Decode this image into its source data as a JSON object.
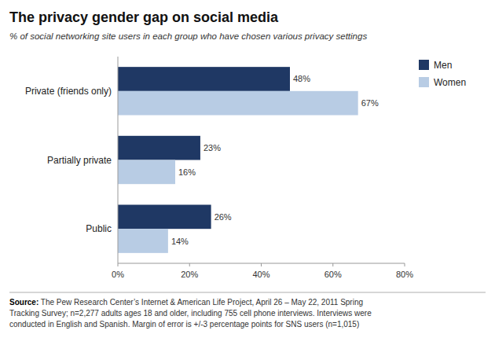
{
  "chart_data": {
    "type": "bar",
    "orientation": "horizontal",
    "title": "The privacy gender gap on social media",
    "subtitle": "% of social networking site users in each group who have chosen various privacy settings",
    "categories": [
      "Public",
      "Partially private",
      "Private (friends only)"
    ],
    "series": [
      {
        "name": "Men",
        "color": "#1F3864",
        "values": [
          26,
          23,
          48
        ],
        "value_labels": [
          "26%",
          "23%",
          "48%"
        ]
      },
      {
        "name": "Women",
        "color": "#B8CCE4",
        "values": [
          14,
          16,
          67
        ],
        "value_labels": [
          "14%",
          "16%",
          "67%"
        ]
      }
    ],
    "xlim": [
      0,
      80
    ],
    "xticks": [
      {
        "value": 0,
        "label": "0%"
      },
      {
        "value": 20,
        "label": "20%"
      },
      {
        "value": 40,
        "label": "40%"
      },
      {
        "value": 60,
        "label": "60%"
      },
      {
        "value": 80,
        "label": "80%"
      }
    ],
    "grid": false,
    "legend": "upper right",
    "data_labels": true,
    "annotations": [
      "Source: The Pew Research Center’s Internet & American Life Project, April 26 – May 22, 2011 Spring\nTracking Survey; n=2,277 adults ages 18 and older, including 755 cell phone interviews. Interviews were\nconducted in English and Spanish. Margin of error is +/-3 percentage points for SNS users (n=1,015)"
    ]
  }
}
